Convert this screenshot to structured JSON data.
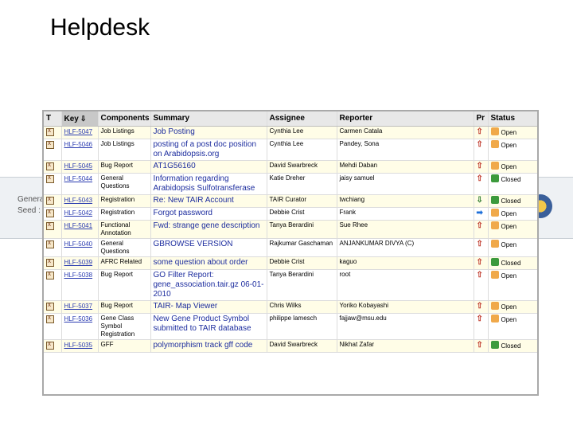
{
  "slide": {
    "title": "Helpdesk"
  },
  "background": {
    "text_line1": "Genera",
    "text_line2": "Seed :"
  },
  "table": {
    "columns": {
      "type": "T",
      "key": "Key",
      "components": "Components",
      "summary": "Summary",
      "assignee": "Assignee",
      "reporter": "Reporter",
      "priority": "Pr",
      "status": "Status"
    },
    "rows": [
      {
        "key": "HLF-5047",
        "components": "Job Listings",
        "summary": "Job Posting",
        "assignee": "Cynthia Lee",
        "reporter": "Carmen Catala",
        "priority": "major",
        "status": "Open"
      },
      {
        "key": "HLF-5046",
        "components": "Job Listings",
        "summary": "posting of a post doc position on Arabidopsis.org",
        "assignee": "Cynthia Lee",
        "reporter": "Pandey, Sona",
        "priority": "major",
        "status": "Open"
      },
      {
        "key": "HLF-5045",
        "components": "Bug Report",
        "summary": "AT1G56160",
        "assignee": "David Swarbreck",
        "reporter": "Mehdi Daban",
        "priority": "major",
        "status": "Open"
      },
      {
        "key": "HLF-5044",
        "components": "General Questions",
        "summary": "Information regarding Arabidopsis Sulfotransferase",
        "assignee": "Katie Dreher",
        "reporter": "jaisy samuel",
        "priority": "major",
        "status": "Closed"
      },
      {
        "key": "HLF-5043",
        "components": "Registration",
        "summary": "Re: New TAIR Account",
        "assignee": "TAIR Curator",
        "reporter": "twchiang",
        "priority": "low",
        "status": "Closed"
      },
      {
        "key": "HLF-5042",
        "components": "Registration",
        "summary": "Forgot password",
        "assignee": "Debbie Crist",
        "reporter": "Frank",
        "priority": "minor",
        "status": "Open"
      },
      {
        "key": "HLF-5041",
        "components": "Functional Annotation",
        "summary": "Fwd: strange gene description",
        "assignee": "Tanya Berardini",
        "reporter": "Sue Rhee",
        "priority": "major",
        "status": "Open"
      },
      {
        "key": "HLF-5040",
        "components": "General Questions",
        "summary": "GBROWSE VERSION",
        "assignee": "Rajkumar Gaschaman",
        "reporter": "ANJANKUMAR DIVYA (C)",
        "priority": "major",
        "status": "Open"
      },
      {
        "key": "HLF-5039",
        "components": "AFRC Related",
        "summary": "some question about order",
        "assignee": "Debbie Crist",
        "reporter": "kaguo",
        "priority": "major",
        "status": "Closed"
      },
      {
        "key": "HLF-5038",
        "components": "Bug Report",
        "summary": "GO Filter Report: gene_association.tair.gz 06-01-2010",
        "assignee": "Tanya Berardini",
        "reporter": "root",
        "priority": "major",
        "status": "Open"
      },
      {
        "key": "HLF-5037",
        "components": "Bug Report",
        "summary": "TAIR- Map Viewer",
        "assignee": "Chris Wilks",
        "reporter": "Yoriko Kobayashi",
        "priority": "major",
        "status": "Open"
      },
      {
        "key": "HLF-5036",
        "components": "Gene Class Symbol Registration",
        "summary": "New Gene Product Symbol submitted to TAIR database",
        "assignee": "philippe lamesch",
        "reporter": "fajjaw@msu.edu",
        "priority": "major",
        "status": "Open"
      },
      {
        "key": "HLF-5035",
        "components": "GFF",
        "summary": "polymorphism track gff code",
        "assignee": "David Swarbreck",
        "reporter": "Nikhat Zafar",
        "priority": "major",
        "status": "Closed"
      }
    ]
  }
}
